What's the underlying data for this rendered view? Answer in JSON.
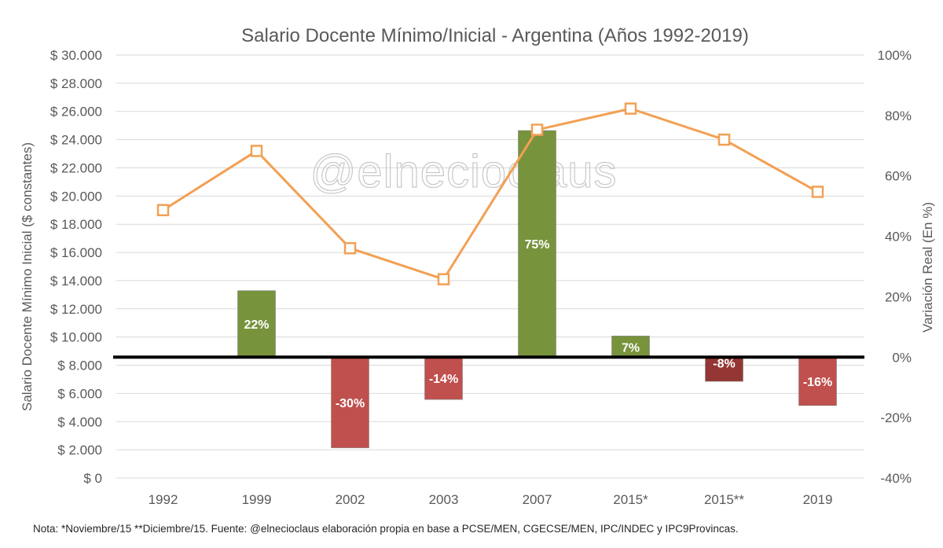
{
  "chart_data": {
    "type": "bar+line",
    "title": "Salario Docente Mínimo/Inicial - Argentina (Años 1992-2019)",
    "ylabel": "Salario Docente Mínimo Inicial ($ constantes)",
    "y2label": "Variación Real (En %)",
    "categories": [
      "1992",
      "1999",
      "2002",
      "2003",
      "2007",
      "2015*",
      "2015**",
      "2019"
    ],
    "ylim": [
      0,
      30000
    ],
    "y_ticks": [
      0,
      2000,
      4000,
      6000,
      8000,
      10000,
      12000,
      14000,
      16000,
      18000,
      20000,
      22000,
      24000,
      26000,
      28000,
      30000
    ],
    "y_tick_labels": [
      "$ 0",
      "$ 2.000",
      "$ 4.000",
      "$ 6.000",
      "$ 8.000",
      "$ 10.000",
      "$ 12.000",
      "$ 14.000",
      "$ 16.000",
      "$ 18.000",
      "$ 20.000",
      "$ 22.000",
      "$ 24.000",
      "$ 26.000",
      "$ 28.000",
      "$ 30.000"
    ],
    "y2lim": [
      -40,
      100
    ],
    "y2_ticks": [
      -40,
      -20,
      0,
      20,
      40,
      60,
      80,
      100
    ],
    "y2_tick_labels": [
      "-40%",
      "-20%",
      "0%",
      "20%",
      "40%",
      "60%",
      "80%",
      "100%"
    ],
    "grid": true,
    "line_series": {
      "axis": "left",
      "color": "#f2a054",
      "values": [
        19000,
        23200,
        16300,
        14100,
        24700,
        26200,
        24000,
        20300
      ]
    },
    "bar_series": {
      "axis": "right",
      "values": [
        null,
        22,
        -30,
        -14,
        75,
        7,
        -8,
        -16
      ],
      "labels": [
        "",
        "22%",
        "-30%",
        "-14%",
        "75%",
        "7%",
        "-8%",
        "-16%"
      ],
      "colors": [
        "",
        "#77933c",
        "#c0504d",
        "#c0504d",
        "#77933c",
        "#77933c",
        "#943634",
        "#c0504d"
      ]
    },
    "watermark": "@elnecioclaus",
    "note": "Nota: *Noviembre/15 **Diciembre/15. Fuente: @elnecioclaus elaboración propia en base a PCSE/MEN, CGECSE/MEN, IPC/INDEC y IPC9Provincas."
  }
}
